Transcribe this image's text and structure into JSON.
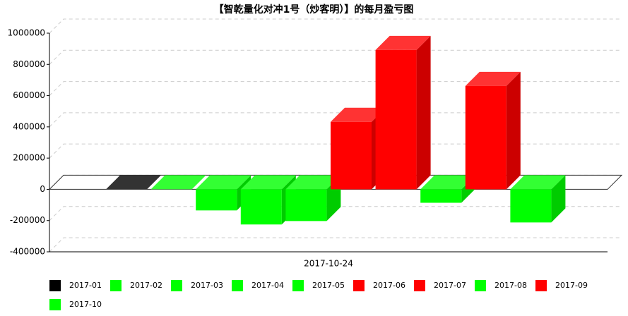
{
  "chart_data": {
    "type": "bar3d",
    "title": "【智乾量化对冲1号（炒客明）】的每月盈亏图",
    "categories": [
      "2017-10-24"
    ],
    "series": [
      {
        "name": "2017-01",
        "color": "#000000",
        "values": [
          0
        ]
      },
      {
        "name": "2017-02",
        "color": "#00ff00",
        "values": [
          0
        ]
      },
      {
        "name": "2017-03",
        "color": "#00ff00",
        "values": [
          -135000
        ]
      },
      {
        "name": "2017-04",
        "color": "#00ff00",
        "values": [
          -225000
        ]
      },
      {
        "name": "2017-05",
        "color": "#00ff00",
        "values": [
          -203000
        ]
      },
      {
        "name": "2017-06",
        "color": "#ff0000",
        "values": [
          432000
        ]
      },
      {
        "name": "2017-07",
        "color": "#ff0000",
        "values": [
          892000
        ]
      },
      {
        "name": "2017-08",
        "color": "#00ff00",
        "values": [
          -86000
        ]
      },
      {
        "name": "2017-09",
        "color": "#ff0000",
        "values": [
          662000
        ]
      },
      {
        "name": "2017-10",
        "color": "#00ff00",
        "values": [
          -212000
        ]
      }
    ],
    "ylim": [
      -400000,
      1000000
    ],
    "yticks": [
      -400000,
      -200000,
      0,
      200000,
      400000,
      600000,
      800000,
      1000000
    ],
    "grid": true
  }
}
